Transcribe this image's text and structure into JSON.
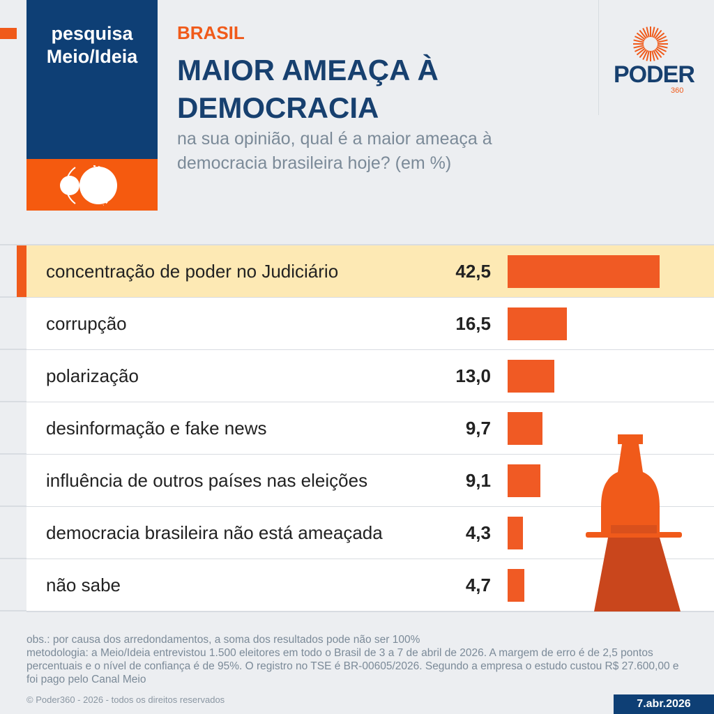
{
  "header": {
    "badge": "pesquisa Meio/Ideia",
    "section": "BRASIL",
    "title": "MAIOR AMEAÇA À DEMOCRACIA",
    "subtitle": "na sua opinião, qual é a maior ameaça à democracia brasileira hoje? (em %)",
    "logo_text": "PODER",
    "logo_sub": "360"
  },
  "colors": {
    "accent": "#f05a24",
    "navy": "#0e3f75",
    "highlight": "#fde9b4"
  },
  "chart_data": {
    "type": "bar",
    "orientation": "horizontal",
    "categories": [
      "concentração de poder no Judiciário",
      "corrupção",
      "polarização",
      "desinformação e fake news",
      "influência de outros países nas eleições",
      "democracia brasileira não está ameaçada",
      "não sabe"
    ],
    "values": [
      42.5,
      16.5,
      13.0,
      9.7,
      9.1,
      4.3,
      4.7
    ],
    "value_labels": [
      "42,5",
      "16,5",
      "13,0",
      "9,7",
      "9,1",
      "4,3",
      "4,7"
    ],
    "highlighted": "concentração de poder no Judiciário"
  },
  "footer": {
    "notes": [
      "obs.: por causa dos arredondamentos, a soma dos resultados pode não ser 100%",
      "metodologia: a Meio/Ideia entrevistou 1.500 eleitores em todo o Brasil de 3 a 7 de abril de 2026. A margem de erro é de 2,5 pontos percentuais e o nível de confiança é de 95%. O registro no TSE é BR-00605/2026. Segundo a empresa o estudo custou R$ 27.600,00 e foi pago pelo Canal Meio"
    ],
    "copyright": "© Poder360 - 2026 - todos os direitos reservados",
    "date": "7.abr.2026"
  }
}
